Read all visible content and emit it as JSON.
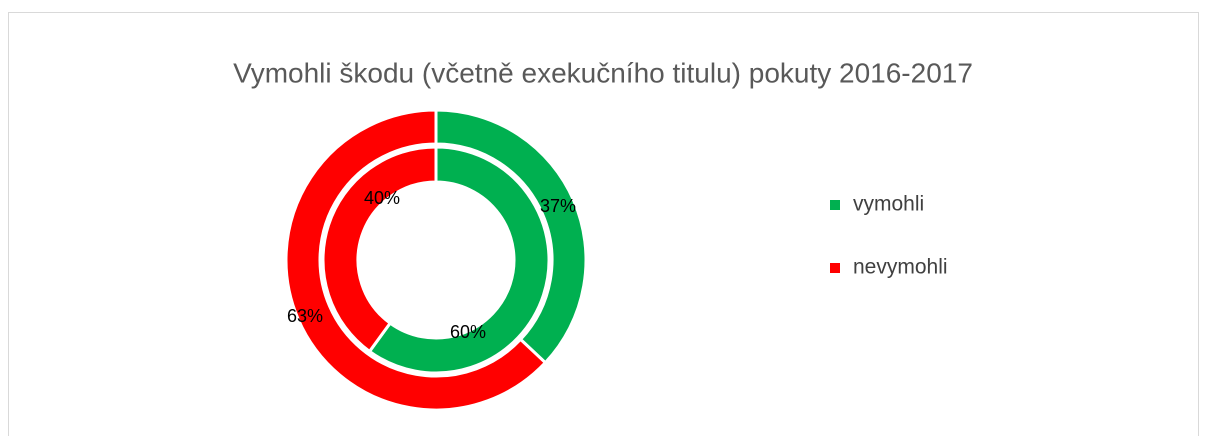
{
  "chart_data": {
    "type": "doughnut",
    "title": "Vymohli škodu (včetně exekučního titulu) pokuty 2016-2017",
    "categories": [
      "vymohli",
      "nevymohli"
    ],
    "colors": [
      "#00b050",
      "#ff0000"
    ],
    "legend": "right",
    "series": [
      {
        "values": [
          37,
          63
        ],
        "value_labels": [
          "37%",
          "63%"
        ]
      },
      {
        "values": [
          60,
          40
        ],
        "value_labels": [
          "60%",
          "40%"
        ]
      }
    ]
  }
}
